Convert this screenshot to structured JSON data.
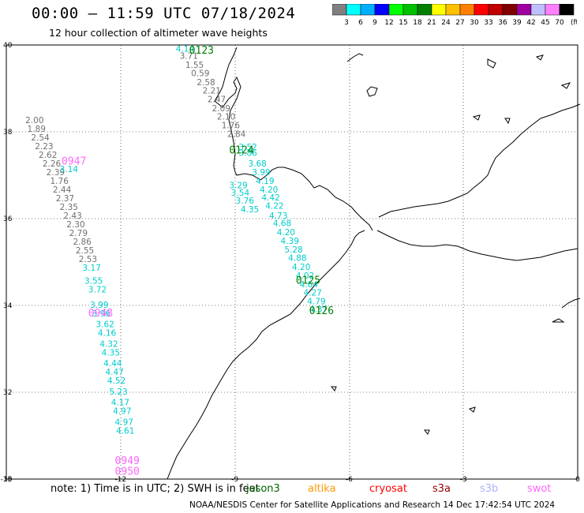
{
  "header": {
    "title": "00:00 – 11:59 UTC 07/18/2024",
    "subtitle": "12 hour collection of altimeter wave heights"
  },
  "legend": {
    "labels": [
      "3",
      "6",
      "9",
      "12",
      "15",
      "18",
      "21",
      "24",
      "27",
      "30",
      "33",
      "36",
      "39",
      "42",
      "45",
      "70"
    ],
    "unit": "(ft)",
    "colors": [
      "#808080",
      "#00ffff",
      "#00b0ff",
      "#0000ff",
      "#00ff00",
      "#00c000",
      "#008000",
      "#ffff00",
      "#ffc000",
      "#ff8000",
      "#ff0000",
      "#c00000",
      "#800000",
      "#a000a0",
      "#c0c0ff",
      "#ff80ff",
      "#000000"
    ]
  },
  "axes": {
    "x_ticks": [
      "-15",
      "-12",
      "-9",
      "-6",
      "-3",
      "0"
    ],
    "y_ticks": [
      "40",
      "38",
      "36",
      "34",
      "32",
      "30"
    ]
  },
  "chart_data": {
    "type": "scatter",
    "xlim": [
      -15,
      0
    ],
    "ylim": [
      30,
      40
    ],
    "pass_labels": [
      {
        "text": "0123",
        "lon": -10.2,
        "lat": 39.8,
        "color": "#008000"
      },
      {
        "text": "0124",
        "lon": -9.15,
        "lat": 37.5,
        "color": "#008000"
      },
      {
        "text": "0125",
        "lon": -7.4,
        "lat": 34.5,
        "color": "#008000"
      },
      {
        "text": "0126",
        "lon": -7.05,
        "lat": 33.8,
        "color": "#008000"
      },
      {
        "text": "0947",
        "lon": -13.55,
        "lat": 37.25,
        "color": "#ff66ff"
      },
      {
        "text": "0948",
        "lon": -12.85,
        "lat": 33.75,
        "color": "#ff66ff"
      },
      {
        "text": "0949",
        "lon": -12.15,
        "lat": 30.35,
        "color": "#ff66ff"
      },
      {
        "text": "0950",
        "lon": -12.15,
        "lat": 30.1,
        "color": "#ff66ff"
      }
    ],
    "series": [
      {
        "color": "#00cccc",
        "points": [
          {
            "lon": -10.55,
            "lat": 39.85,
            "v": "4.14"
          },
          {
            "lon": -9.15,
            "lat": 36.7,
            "v": "3.29"
          },
          {
            "lon": -9.1,
            "lat": 36.53,
            "v": "3.54"
          },
          {
            "lon": -8.98,
            "lat": 36.35,
            "v": "3.76"
          },
          {
            "lon": -8.85,
            "lat": 36.15,
            "v": "4.35"
          },
          {
            "lon": -8.9,
            "lat": 37.58,
            "v": "3.52"
          },
          {
            "lon": -8.9,
            "lat": 37.45,
            "v": "3.86"
          },
          {
            "lon": -8.65,
            "lat": 37.2,
            "v": "3.68"
          },
          {
            "lon": -8.55,
            "lat": 37.0,
            "v": "3.99"
          },
          {
            "lon": -8.45,
            "lat": 36.8,
            "v": "4.19"
          },
          {
            "lon": -8.35,
            "lat": 36.6,
            "v": "4.20"
          },
          {
            "lon": -8.3,
            "lat": 36.42,
            "v": "4.42"
          },
          {
            "lon": -8.2,
            "lat": 36.23,
            "v": "4.22"
          },
          {
            "lon": -8.1,
            "lat": 36.0,
            "v": "4.73"
          },
          {
            "lon": -8.0,
            "lat": 35.83,
            "v": "4.68"
          },
          {
            "lon": -7.9,
            "lat": 35.62,
            "v": "4.20"
          },
          {
            "lon": -7.8,
            "lat": 35.42,
            "v": "4.39"
          },
          {
            "lon": -7.7,
            "lat": 35.22,
            "v": "5.28"
          },
          {
            "lon": -7.6,
            "lat": 35.03,
            "v": "4.88"
          },
          {
            "lon": -7.5,
            "lat": 34.82,
            "v": "4.20"
          },
          {
            "lon": -7.4,
            "lat": 34.62,
            "v": "4.02"
          },
          {
            "lon": -7.3,
            "lat": 34.42,
            "v": "4.64"
          },
          {
            "lon": -7.2,
            "lat": 34.23,
            "v": "4.27"
          },
          {
            "lon": -7.1,
            "lat": 34.03,
            "v": "4.79"
          },
          {
            "lon": -7.05,
            "lat": 33.85,
            "v": "4.37"
          }
        ]
      },
      {
        "color": "#707070",
        "points": [
          {
            "lon": -10.45,
            "lat": 39.68,
            "v": "3.71"
          },
          {
            "lon": -10.3,
            "lat": 39.47,
            "v": "1.55"
          },
          {
            "lon": -10.15,
            "lat": 39.28,
            "v": "0.59"
          },
          {
            "lon": -10.0,
            "lat": 39.07,
            "v": "2.58"
          },
          {
            "lon": -9.85,
            "lat": 38.88,
            "v": "2.21"
          },
          {
            "lon": -9.72,
            "lat": 38.68,
            "v": "2.47"
          },
          {
            "lon": -9.6,
            "lat": 38.47,
            "v": "2.09"
          },
          {
            "lon": -9.47,
            "lat": 38.28,
            "v": "2.10"
          },
          {
            "lon": -9.35,
            "lat": 38.08,
            "v": "1.76"
          },
          {
            "lon": -9.2,
            "lat": 37.88,
            "v": "2.84"
          }
        ]
      },
      {
        "color": "#707070",
        "points": [
          {
            "lon": -14.5,
            "lat": 38.2,
            "v": "2.00"
          },
          {
            "lon": -14.45,
            "lat": 38.0,
            "v": "1.89"
          },
          {
            "lon": -14.35,
            "lat": 37.8,
            "v": "2.54"
          },
          {
            "lon": -14.25,
            "lat": 37.6,
            "v": "2.23"
          },
          {
            "lon": -14.15,
            "lat": 37.4,
            "v": "2.62"
          },
          {
            "lon": -14.05,
            "lat": 37.2,
            "v": "2.26"
          },
          {
            "lon": -13.95,
            "lat": 37.0,
            "v": "2.39"
          },
          {
            "lon": -13.85,
            "lat": 36.8,
            "v": "1.76"
          },
          {
            "lon": -13.78,
            "lat": 36.6,
            "v": "2.44"
          },
          {
            "lon": -13.7,
            "lat": 36.4,
            "v": "2.37"
          },
          {
            "lon": -13.6,
            "lat": 36.2,
            "v": "2.35"
          },
          {
            "lon": -13.5,
            "lat": 36.0,
            "v": "2.43"
          },
          {
            "lon": -13.42,
            "lat": 35.8,
            "v": "2.30"
          },
          {
            "lon": -13.35,
            "lat": 35.6,
            "v": "2.79"
          },
          {
            "lon": -13.25,
            "lat": 35.4,
            "v": "2.86"
          },
          {
            "lon": -13.18,
            "lat": 35.2,
            "v": "2.55"
          },
          {
            "lon": -13.1,
            "lat": 35.0,
            "v": "2.53"
          }
        ]
      },
      {
        "color": "#00cccc",
        "points": [
          {
            "lon": -13.6,
            "lat": 37.07,
            "v": "3.14"
          },
          {
            "lon": -13.0,
            "lat": 34.8,
            "v": "3.17"
          },
          {
            "lon": -12.95,
            "lat": 34.5,
            "v": "3.55"
          },
          {
            "lon": -12.85,
            "lat": 34.3,
            "v": "3.72"
          },
          {
            "lon": -12.8,
            "lat": 33.95,
            "v": "3.99"
          },
          {
            "lon": -12.75,
            "lat": 33.75,
            "v": "3.96"
          },
          {
            "lon": -12.65,
            "lat": 33.5,
            "v": "3.62"
          },
          {
            "lon": -12.6,
            "lat": 33.3,
            "v": "4.16"
          },
          {
            "lon": -12.55,
            "lat": 33.05,
            "v": "4.32"
          },
          {
            "lon": -12.5,
            "lat": 32.85,
            "v": "4.35"
          },
          {
            "lon": -12.45,
            "lat": 32.6,
            "v": "4.44"
          },
          {
            "lon": -12.4,
            "lat": 32.4,
            "v": "4.47"
          },
          {
            "lon": -12.35,
            "lat": 32.2,
            "v": "4.52"
          },
          {
            "lon": -12.3,
            "lat": 31.95,
            "v": "5.23"
          },
          {
            "lon": -12.25,
            "lat": 31.7,
            "v": "4.17"
          },
          {
            "lon": -12.2,
            "lat": 31.5,
            "v": "4.97"
          },
          {
            "lon": -12.15,
            "lat": 31.25,
            "v": "4.97"
          },
          {
            "lon": -12.12,
            "lat": 31.05,
            "v": "4.61"
          }
        ]
      }
    ]
  },
  "footer": {
    "note": "note:  1) Time is in UTC;  2) SWH is in feet",
    "satellites": [
      {
        "name": "jason3",
        "color": "#006600"
      },
      {
        "name": "altika",
        "color": "#ff9900"
      },
      {
        "name": "cryosat",
        "color": "#ff0000"
      },
      {
        "name": "s3a",
        "color": "#990000"
      },
      {
        "name": "s3b",
        "color": "#b0b0ff"
      },
      {
        "name": "swot",
        "color": "#ff66ff"
      }
    ],
    "credit": "NOAA/NESDIS Center for Satellite Applications and Research    14 Dec 17:42:54 UTC 2024"
  }
}
